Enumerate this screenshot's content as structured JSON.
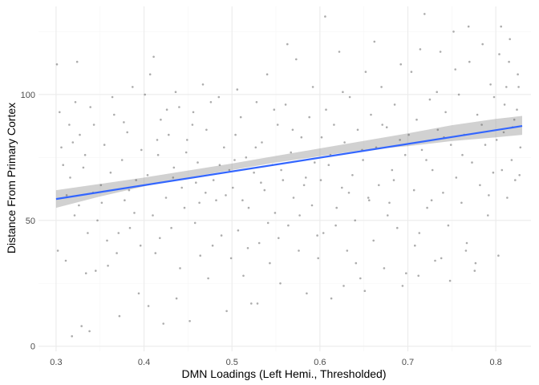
{
  "chart_data": {
    "type": "scatter",
    "title": "",
    "xlabel": "DMN Loadings (Left Hemi., Thresholded)",
    "ylabel": "Distance From Primary Cortex",
    "xlim": [
      0.28,
      0.84
    ],
    "ylim": [
      -2,
      135
    ],
    "x_ticks": [
      0.3,
      0.4,
      0.5,
      0.6,
      0.7,
      0.8
    ],
    "x_tick_labels": [
      "0.3",
      "0.4",
      "0.5",
      "0.6",
      "0.7",
      "0.8"
    ],
    "y_ticks": [
      0,
      50,
      100
    ],
    "y_tick_labels": [
      "0",
      "50",
      "100"
    ],
    "grid": true,
    "legend": "none",
    "colors": {
      "points": "#595959",
      "fit_line": "#3366ff",
      "confidence_band": "#999999",
      "grid_major": "#ebebeb",
      "grid_minor": "#f5f5f5"
    },
    "fit_line": {
      "x": [
        0.3,
        0.83
      ],
      "y": [
        58.5,
        87.5
      ]
    },
    "confidence_band": {
      "x": [
        0.3,
        0.35,
        0.4,
        0.45,
        0.5,
        0.55,
        0.6,
        0.65,
        0.7,
        0.75,
        0.8,
        0.83
      ],
      "lower": [
        55.0,
        59.5,
        63.5,
        67.0,
        70.0,
        73.0,
        75.5,
        78.0,
        79.5,
        81.5,
        83.0,
        84.0
      ],
      "upper": [
        62.0,
        64.5,
        67.0,
        69.8,
        72.6,
        75.6,
        78.6,
        81.6,
        84.6,
        87.8,
        90.3,
        91.5
      ]
    },
    "points": [
      [
        0.301,
        112
      ],
      [
        0.304,
        93
      ],
      [
        0.308,
        72
      ],
      [
        0.312,
        60
      ],
      [
        0.315,
        88
      ],
      [
        0.318,
        4
      ],
      [
        0.321,
        52
      ],
      [
        0.324,
        113
      ],
      [
        0.327,
        84
      ],
      [
        0.329,
        8
      ],
      [
        0.333,
        76
      ],
      [
        0.336,
        45
      ],
      [
        0.339,
        95
      ],
      [
        0.342,
        61
      ],
      [
        0.345,
        30
      ],
      [
        0.302,
        38
      ],
      [
        0.306,
        79
      ],
      [
        0.311,
        34
      ],
      [
        0.316,
        67
      ],
      [
        0.319,
        81
      ],
      [
        0.322,
        97
      ],
      [
        0.326,
        56
      ],
      [
        0.331,
        71
      ],
      [
        0.334,
        29
      ],
      [
        0.338,
        6
      ],
      [
        0.343,
        88
      ],
      [
        0.347,
        50
      ],
      [
        0.351,
        64
      ],
      [
        0.355,
        80
      ],
      [
        0.358,
        42
      ],
      [
        0.362,
        69
      ],
      [
        0.366,
        92
      ],
      [
        0.369,
        37
      ],
      [
        0.372,
        12
      ],
      [
        0.375,
        74
      ],
      [
        0.378,
        58
      ],
      [
        0.381,
        85
      ],
      [
        0.384,
        47
      ],
      [
        0.387,
        103
      ],
      [
        0.391,
        66
      ],
      [
        0.394,
        21
      ],
      [
        0.397,
        78
      ],
      [
        0.352,
        57
      ],
      [
        0.359,
        32
      ],
      [
        0.364,
        99
      ],
      [
        0.371,
        45
      ],
      [
        0.377,
        89
      ],
      [
        0.383,
        62
      ],
      [
        0.389,
        53
      ],
      [
        0.396,
        40
      ],
      [
        0.401,
        100
      ],
      [
        0.404,
        68
      ],
      [
        0.407,
        108
      ],
      [
        0.41,
        52
      ],
      [
        0.413,
        37
      ],
      [
        0.416,
        76
      ],
      [
        0.419,
        90
      ],
      [
        0.422,
        9
      ],
      [
        0.425,
        59
      ],
      [
        0.428,
        84
      ],
      [
        0.431,
        47
      ],
      [
        0.434,
        71
      ],
      [
        0.437,
        19
      ],
      [
        0.44,
        95
      ],
      [
        0.443,
        63
      ],
      [
        0.446,
        55
      ],
      [
        0.449,
        82
      ],
      [
        0.452,
        10
      ],
      [
        0.455,
        88
      ],
      [
        0.458,
        49
      ],
      [
        0.461,
        73
      ],
      [
        0.464,
        36
      ],
      [
        0.467,
        104
      ],
      [
        0.47,
        61
      ],
      [
        0.473,
        27
      ],
      [
        0.476,
        97
      ],
      [
        0.479,
        66
      ],
      [
        0.482,
        58
      ],
      [
        0.485,
        99
      ],
      [
        0.488,
        44
      ],
      [
        0.491,
        79
      ],
      [
        0.494,
        14
      ],
      [
        0.497,
        70
      ],
      [
        0.411,
        115
      ],
      [
        0.418,
        43
      ],
      [
        0.426,
        94
      ],
      [
        0.433,
        67
      ],
      [
        0.441,
        31
      ],
      [
        0.448,
        77
      ],
      [
        0.456,
        93
      ],
      [
        0.463,
        57
      ],
      [
        0.471,
        86
      ],
      [
        0.478,
        40
      ],
      [
        0.486,
        72
      ],
      [
        0.493,
        60
      ],
      [
        0.499,
        35
      ],
      [
        0.405,
        16
      ],
      [
        0.415,
        82
      ],
      [
        0.436,
        101
      ],
      [
        0.459,
        65
      ],
      [
        0.501,
        63
      ],
      [
        0.504,
        84
      ],
      [
        0.507,
        46
      ],
      [
        0.51,
        91
      ],
      [
        0.513,
        28
      ],
      [
        0.516,
        75
      ],
      [
        0.519,
        55
      ],
      [
        0.522,
        17
      ],
      [
        0.525,
        69
      ],
      [
        0.528,
        97
      ],
      [
        0.531,
        41
      ],
      [
        0.534,
        81
      ],
      [
        0.537,
        62
      ],
      [
        0.54,
        108
      ],
      [
        0.543,
        33
      ],
      [
        0.546,
        72
      ],
      [
        0.549,
        53
      ],
      [
        0.552,
        88
      ],
      [
        0.555,
        25
      ],
      [
        0.558,
        66
      ],
      [
        0.561,
        96
      ],
      [
        0.564,
        48
      ],
      [
        0.567,
        77
      ],
      [
        0.57,
        59
      ],
      [
        0.573,
        114
      ],
      [
        0.576,
        38
      ],
      [
        0.579,
        83
      ],
      [
        0.582,
        64
      ],
      [
        0.585,
        21
      ],
      [
        0.588,
        91
      ],
      [
        0.591,
        56
      ],
      [
        0.594,
        73
      ],
      [
        0.597,
        44
      ],
      [
        0.506,
        102
      ],
      [
        0.512,
        58
      ],
      [
        0.518,
        39
      ],
      [
        0.527,
        79
      ],
      [
        0.533,
        65
      ],
      [
        0.541,
        49
      ],
      [
        0.548,
        94
      ],
      [
        0.556,
        70
      ],
      [
        0.563,
        120
      ],
      [
        0.569,
        86
      ],
      [
        0.577,
        52
      ],
      [
        0.584,
        67
      ],
      [
        0.592,
        103
      ],
      [
        0.598,
        35
      ],
      [
        0.503,
        74
      ],
      [
        0.529,
        17
      ],
      [
        0.553,
        43
      ],
      [
        0.601,
        66
      ],
      [
        0.604,
        45
      ],
      [
        0.607,
        94
      ],
      [
        0.61,
        72
      ],
      [
        0.613,
        19
      ],
      [
        0.616,
        88
      ],
      [
        0.619,
        55
      ],
      [
        0.622,
        117
      ],
      [
        0.625,
        63
      ],
      [
        0.628,
        81
      ],
      [
        0.631,
        38
      ],
      [
        0.634,
        99
      ],
      [
        0.637,
        68
      ],
      [
        0.64,
        50
      ],
      [
        0.643,
        86
      ],
      [
        0.646,
        27
      ],
      [
        0.649,
        74
      ],
      [
        0.652,
        109
      ],
      [
        0.655,
        59
      ],
      [
        0.658,
        92
      ],
      [
        0.661,
        42
      ],
      [
        0.664,
        79
      ],
      [
        0.667,
        64
      ],
      [
        0.67,
        103
      ],
      [
        0.673,
        31
      ],
      [
        0.676,
        87
      ],
      [
        0.679,
        57
      ],
      [
        0.682,
        70
      ],
      [
        0.685,
        96
      ],
      [
        0.688,
        47
      ],
      [
        0.691,
        82
      ],
      [
        0.694,
        24
      ],
      [
        0.697,
        76
      ],
      [
        0.606,
        131
      ],
      [
        0.612,
        76
      ],
      [
        0.618,
        48
      ],
      [
        0.626,
        101
      ],
      [
        0.633,
        61
      ],
      [
        0.641,
        33
      ],
      [
        0.648,
        78
      ],
      [
        0.656,
        58
      ],
      [
        0.662,
        121
      ],
      [
        0.671,
        88
      ],
      [
        0.677,
        52
      ],
      [
        0.684,
        66
      ],
      [
        0.692,
        112
      ],
      [
        0.698,
        29
      ],
      [
        0.602,
        83
      ],
      [
        0.627,
        24
      ],
      [
        0.651,
        22
      ],
      [
        0.701,
        84
      ],
      [
        0.704,
        109
      ],
      [
        0.707,
        62
      ],
      [
        0.71,
        90
      ],
      [
        0.713,
        45
      ],
      [
        0.716,
        78
      ],
      [
        0.719,
        132
      ],
      [
        0.722,
        55
      ],
      [
        0.725,
        98
      ],
      [
        0.728,
        70
      ],
      [
        0.731,
        34
      ],
      [
        0.734,
        86
      ],
      [
        0.737,
        117
      ],
      [
        0.74,
        61
      ],
      [
        0.743,
        93
      ],
      [
        0.746,
        48
      ],
      [
        0.749,
        80
      ],
      [
        0.752,
        125
      ],
      [
        0.755,
        67
      ],
      [
        0.758,
        100
      ],
      [
        0.761,
        57
      ],
      [
        0.764,
        84
      ],
      [
        0.767,
        41
      ],
      [
        0.77,
        113
      ],
      [
        0.773,
        73
      ],
      [
        0.776,
        30
      ],
      [
        0.779,
        92
      ],
      [
        0.782,
        64
      ],
      [
        0.785,
        120
      ],
      [
        0.788,
        80
      ],
      [
        0.791,
        52
      ],
      [
        0.794,
        104
      ],
      [
        0.797,
        69
      ],
      [
        0.708,
        40
      ],
      [
        0.714,
        118
      ],
      [
        0.721,
        74
      ],
      [
        0.727,
        58
      ],
      [
        0.733,
        101
      ],
      [
        0.741,
        83
      ],
      [
        0.748,
        26
      ],
      [
        0.754,
        110
      ],
      [
        0.762,
        76
      ],
      [
        0.769,
        127
      ],
      [
        0.777,
        33
      ],
      [
        0.784,
        88
      ],
      [
        0.792,
        60
      ],
      [
        0.798,
        99
      ],
      [
        0.712,
        28
      ],
      [
        0.738,
        35
      ],
      [
        0.766,
        38
      ],
      [
        0.801,
        82
      ],
      [
        0.804,
        116
      ],
      [
        0.807,
        70
      ],
      [
        0.81,
        96
      ],
      [
        0.813,
        59
      ],
      [
        0.816,
        122
      ],
      [
        0.819,
        87
      ],
      [
        0.822,
        66
      ],
      [
        0.825,
        108
      ],
      [
        0.828,
        79
      ],
      [
        0.803,
        36
      ],
      [
        0.806,
        127
      ],
      [
        0.812,
        103
      ],
      [
        0.818,
        74
      ],
      [
        0.824,
        94
      ],
      [
        0.827,
        68
      ],
      [
        0.809,
        85
      ],
      [
        0.815,
        113
      ],
      [
        0.821,
        90
      ],
      [
        0.826,
        103
      ]
    ]
  }
}
